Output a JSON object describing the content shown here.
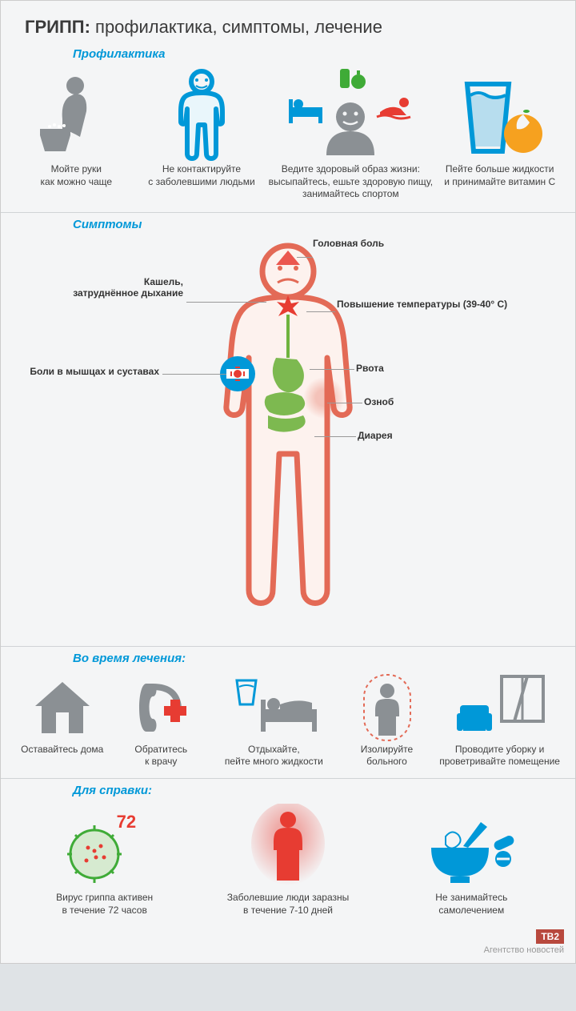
{
  "colors": {
    "accent_blue": "#0098d8",
    "gray_figure": "#8b9094",
    "green": "#3fab37",
    "red": "#e73c32",
    "orange": "#f6a11f",
    "body_outline": "#e36a56",
    "body_fill": "#fdf2ee",
    "organ_green": "#6fb33e",
    "text": "#3a3a3a",
    "logo_bg": "#b8493e"
  },
  "title_prefix": "ГРИПП:",
  "title_rest": " профилактика, симптомы, лечение",
  "prevention": {
    "heading": "Профилактика",
    "items": [
      {
        "caption": "Мойте руки\nкак можно чаще"
      },
      {
        "caption": "Не контактируйте\nс заболевшими людьми"
      },
      {
        "caption": "Ведите здоровый образ жизни:\nвысыпайтесь, ешьте здоровую пищу,\nзанимайтесь спортом"
      },
      {
        "caption": "Пейте больше жидкости\nи принимайте витамин C"
      }
    ]
  },
  "symptoms": {
    "heading": "Симптомы",
    "labels": {
      "headache": "Головная боль",
      "cough": "Кашель,\nзатруднённое дыхание",
      "fever": "Повышение температуры (39-40° C)",
      "muscle": "Боли в мышцах и суставах",
      "vomit": "Рвота",
      "chill": "Озноб",
      "diarrhea": "Диарея"
    }
  },
  "treatment": {
    "heading": "Во время лечения:",
    "items": [
      {
        "caption": "Оставайтесь дома"
      },
      {
        "caption": "Обратитесь\nк врачу"
      },
      {
        "caption": "Отдыхайте,\nпейте много жидкости"
      },
      {
        "caption": "Изолируйте\nбольного"
      },
      {
        "caption": "Проводите уборку и\nпроветривайте помещение"
      }
    ]
  },
  "reference": {
    "heading": "Для справки:",
    "virus_count": "72",
    "items": [
      {
        "caption": "Вирус гриппа активен\nв течение 72 часов"
      },
      {
        "caption": "Заболевшие люди заразны\nв течение 7-10 дней"
      },
      {
        "caption": "Не занимайтесь\nсамолечением"
      }
    ]
  },
  "footer": {
    "logo": "ТВ2",
    "agency": "Агентство новостей"
  }
}
